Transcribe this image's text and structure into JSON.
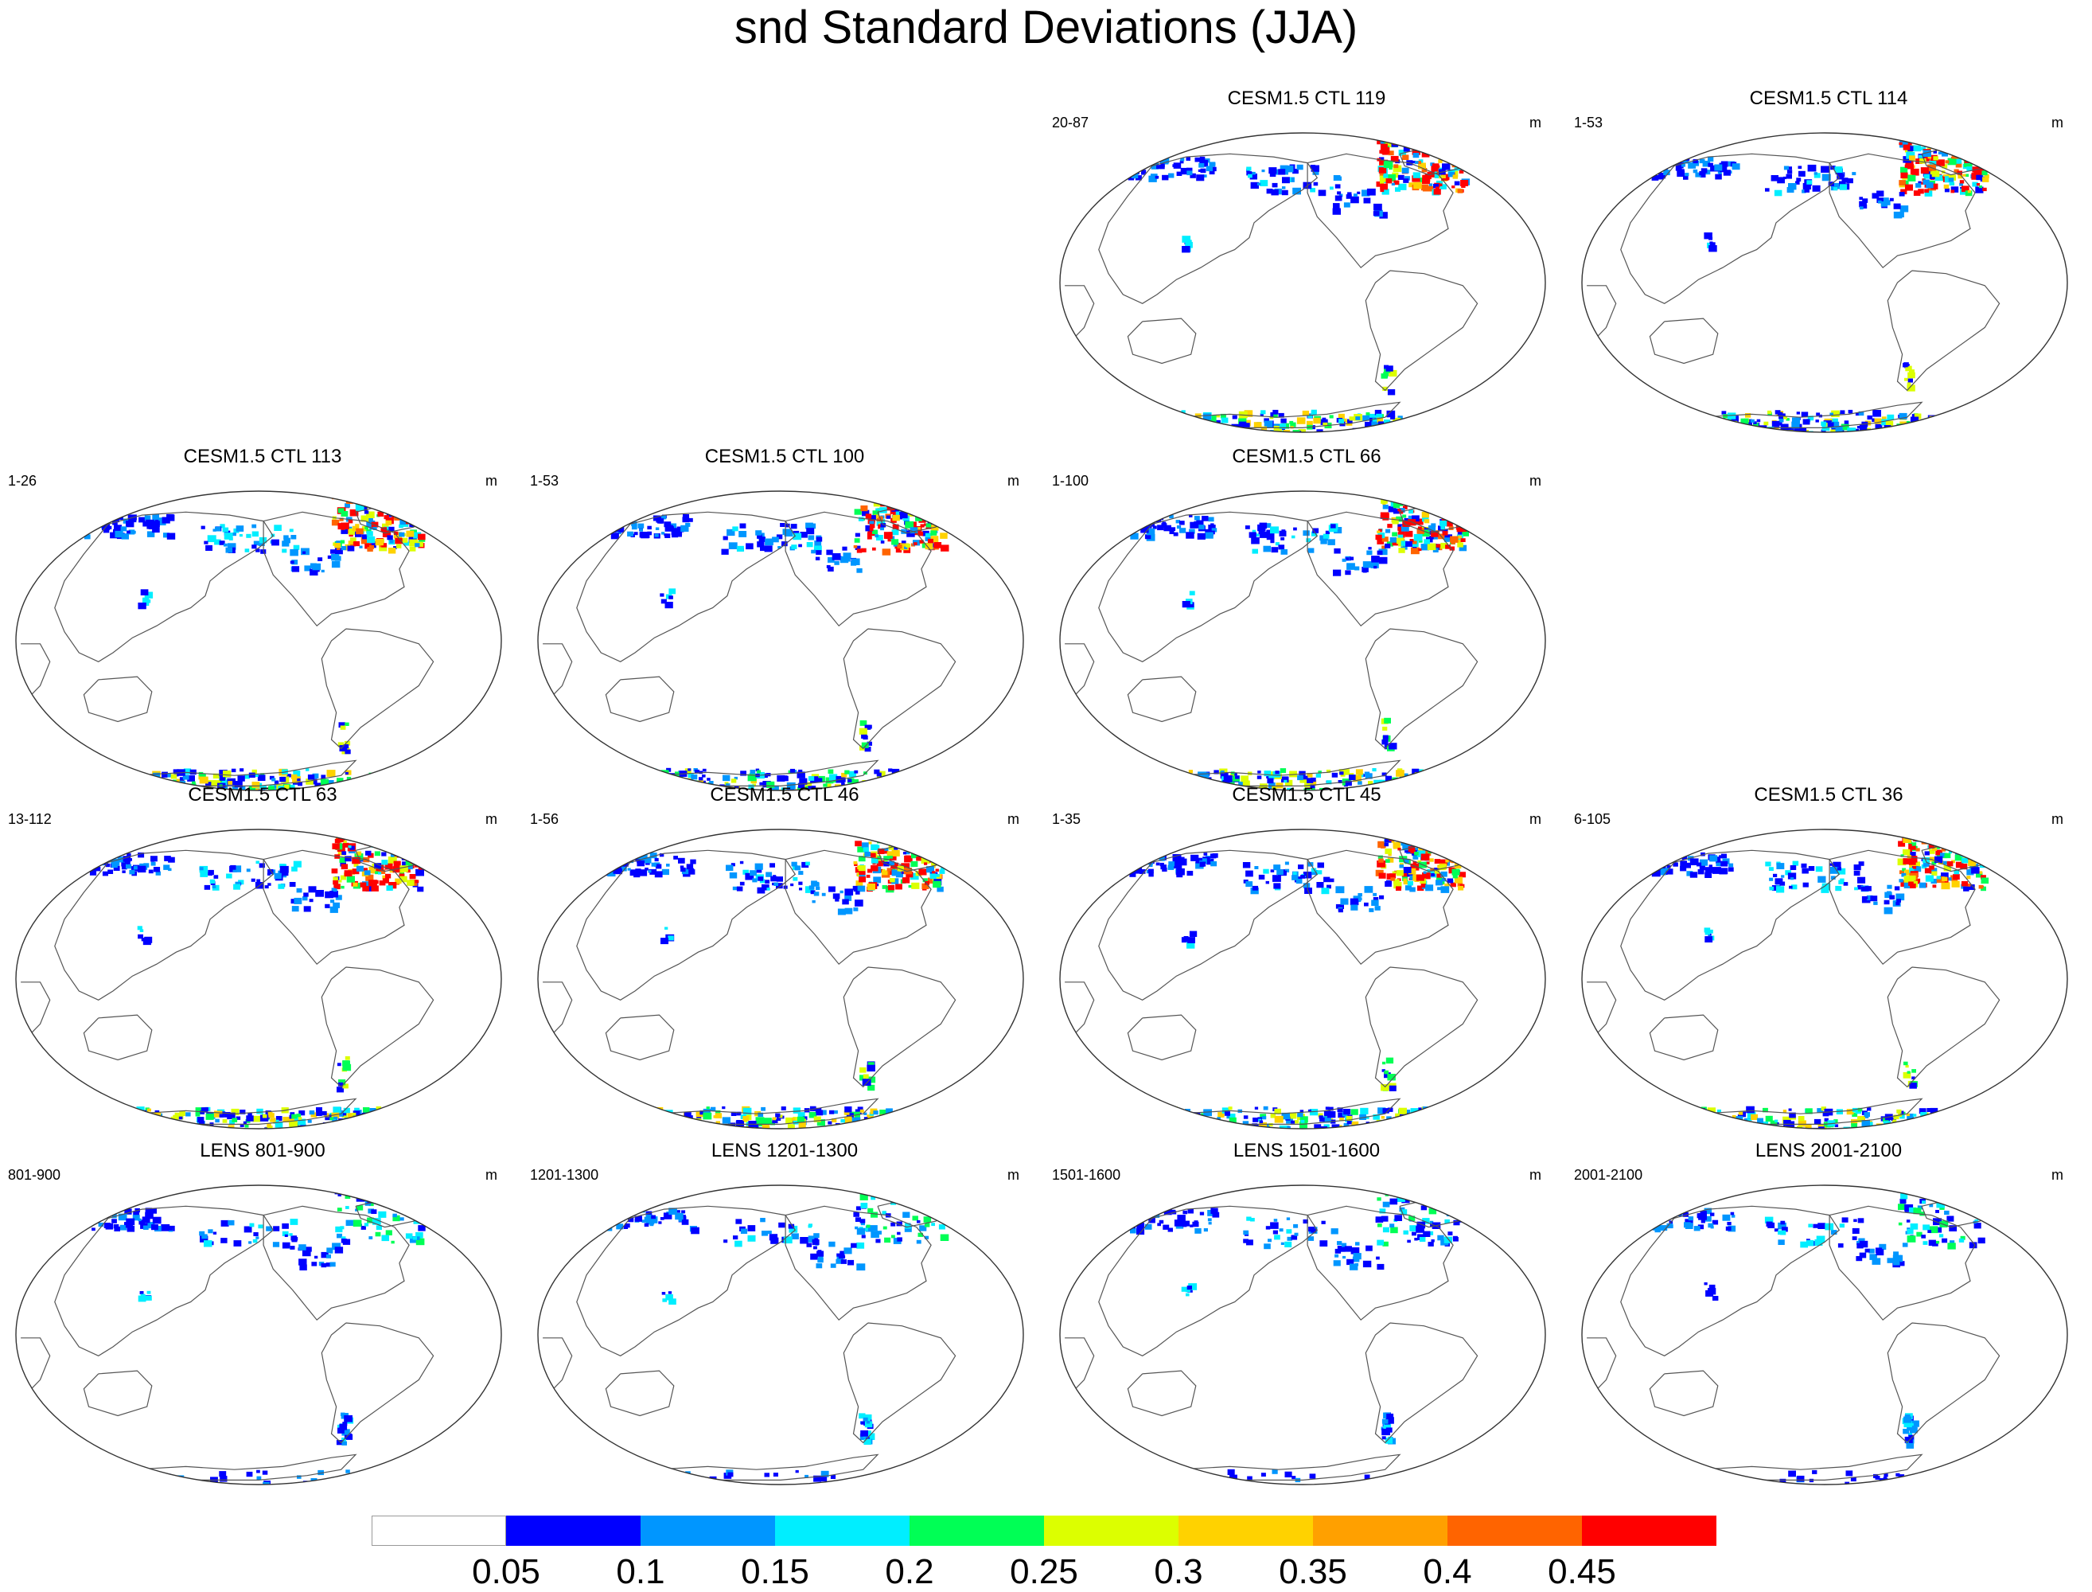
{
  "title": "snd Standard Deviations (JJA)",
  "unit": "m",
  "colors": {
    "blank": "#ffffff",
    "c1": "#0000ff",
    "c2": "#0096ff",
    "c3": "#00eeff",
    "c4": "#00ff55",
    "c5": "#dcff00",
    "c6": "#ffd200",
    "c7": "#ffa000",
    "c8": "#ff6400",
    "c9": "#ff0000",
    "coast": "#555555"
  },
  "colorbar": {
    "ticks": [
      "0.05",
      "0.1",
      "0.15",
      "0.2",
      "0.25",
      "0.3",
      "0.35",
      "0.4",
      "0.45"
    ],
    "box_colors": [
      "#ffffff",
      "#0000ff",
      "#0096ff",
      "#00eeff",
      "#00ff55",
      "#dcff00",
      "#ffd200",
      "#ffa000",
      "#ff6400",
      "#ff0000"
    ]
  },
  "panels": [
    {
      "title": "CESM1.5 CTL 119",
      "range": "20-87",
      "unit": "m"
    },
    {
      "title": "CESM1.5 CTL 114",
      "range": "1-53",
      "unit": "m"
    },
    {
      "title": "CESM1.5 CTL 113",
      "range": "1-26",
      "unit": "m"
    },
    {
      "title": "CESM1.5 CTL 100",
      "range": "1-53",
      "unit": "m"
    },
    {
      "title": "CESM1.5 CTL 66",
      "range": "1-100",
      "unit": "m"
    },
    {
      "title": "CESM1.5 CTL 63",
      "range": "13-112",
      "unit": "m"
    },
    {
      "title": "CESM1.5 CTL 46",
      "range": "1-56",
      "unit": "m"
    },
    {
      "title": "CESM1.5 CTL 45",
      "range": "1-35",
      "unit": "m"
    },
    {
      "title": "CESM1.5 CTL 36",
      "range": "6-105",
      "unit": "m"
    },
    {
      "title": "LENS 801-900",
      "range": "801-900",
      "unit": "m"
    },
    {
      "title": "LENS 1201-1300",
      "range": "1201-1300",
      "unit": "m"
    },
    {
      "title": "LENS 1501-1600",
      "range": "1501-1600",
      "unit": "m"
    },
    {
      "title": "LENS 2001-2100",
      "range": "2001-2100",
      "unit": "m"
    }
  ]
}
